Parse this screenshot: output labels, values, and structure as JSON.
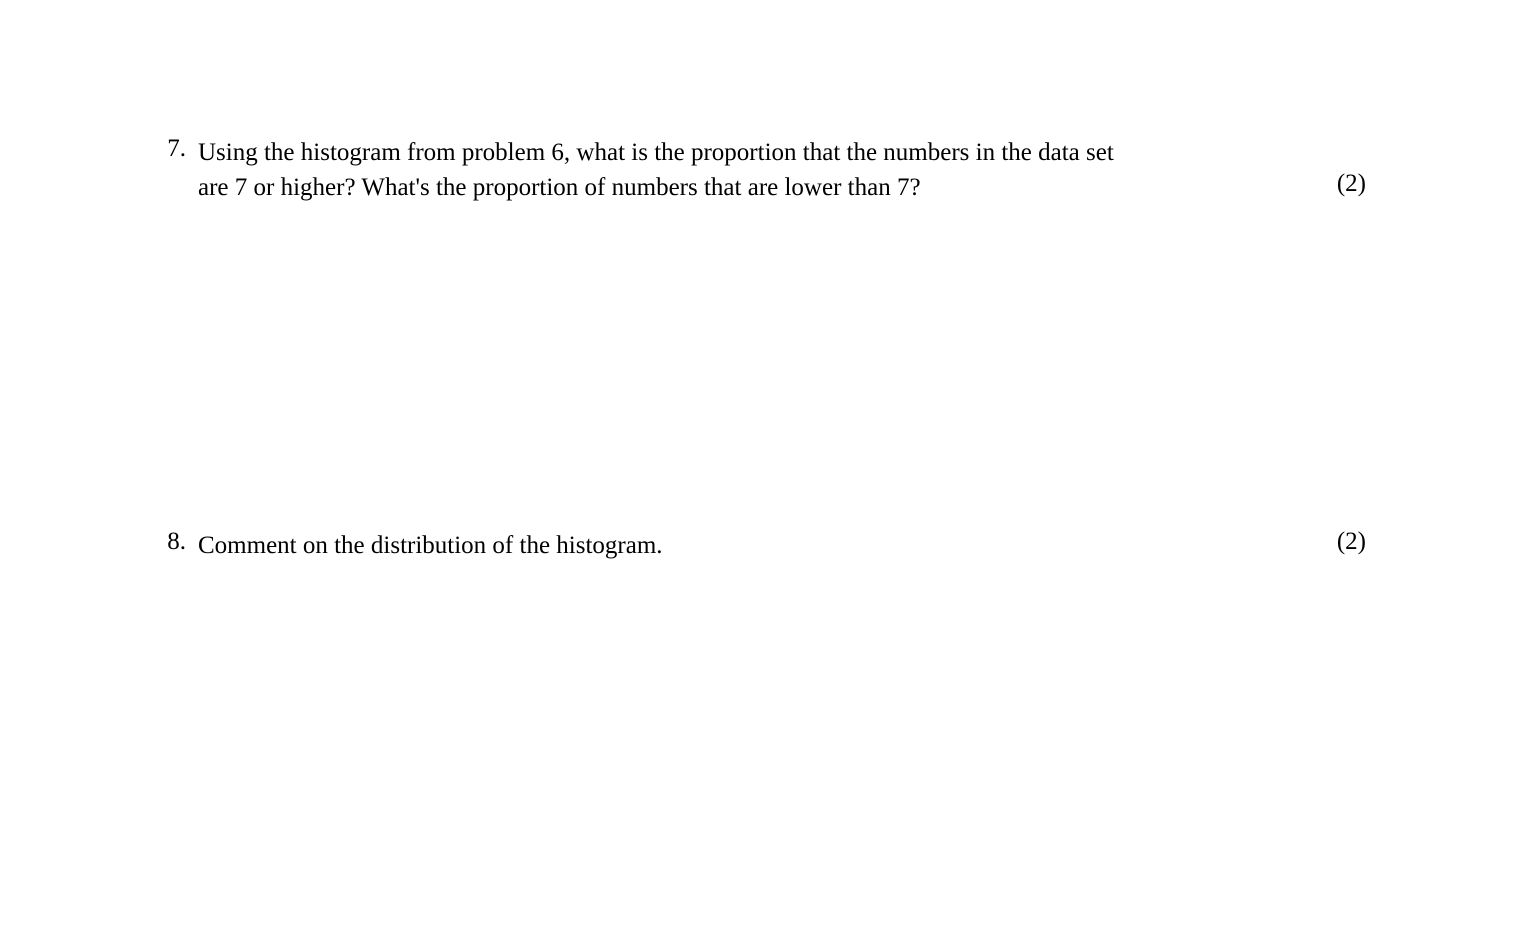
{
  "questions": {
    "q7": {
      "number": "7.",
      "text_line1": "Using the histogram from problem 6, what is the proportion that the numbers in the data set",
      "text_line2": "are 7 or higher?  What's the proportion of numbers that are lower than 7?",
      "points": "(2)"
    },
    "q8": {
      "number": "8.",
      "text": "Comment on the distribution of the histogram.",
      "points": "(2)"
    }
  },
  "styling": {
    "background_color": "#ffffff",
    "text_color": "#000000",
    "font_family": "Times New Roman",
    "font_size_pt": 19
  }
}
